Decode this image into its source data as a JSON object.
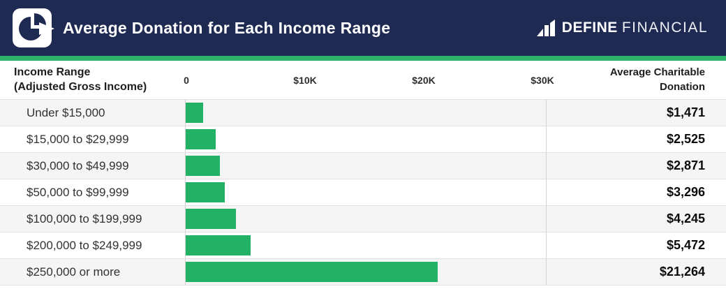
{
  "header": {
    "title": "Average Donation for Each Income Range",
    "logo_text_bold": "DEFINE",
    "logo_text_light": "FINANCIAL"
  },
  "table": {
    "income_header_line1": "Income Range",
    "income_header_line2": "(Adjusted Gross Income)",
    "value_header_line1": "Average Charitable",
    "value_header_line2": "Donation",
    "axis_ticks": [
      {
        "label": "0",
        "value": 0
      },
      {
        "label": "$10K",
        "value": 10000
      },
      {
        "label": "$20K",
        "value": 20000
      },
      {
        "label": "$30K",
        "value": 30000
      }
    ],
    "axis_max": 30000,
    "rows": [
      {
        "label": "Under $15,000",
        "value": 1471,
        "value_label": "$1,471"
      },
      {
        "label": "$15,000 to $29,999",
        "value": 2525,
        "value_label": "$2,525"
      },
      {
        "label": "$30,000 to $49,999",
        "value": 2871,
        "value_label": "$2,871"
      },
      {
        "label": "$50,000 to $99,999",
        "value": 3296,
        "value_label": "$3,296"
      },
      {
        "label": "$100,000 to $199,999",
        "value": 4245,
        "value_label": "$4,245"
      },
      {
        "label": "$200,000 to $249,999",
        "value": 5472,
        "value_label": "$5,472"
      },
      {
        "label": "$250,000 or more",
        "value": 21264,
        "value_label": "$21,264"
      }
    ]
  },
  "chart_data": {
    "type": "bar",
    "orientation": "horizontal",
    "title": "Average Donation for Each Income Range",
    "categories": [
      "Under $15,000",
      "$15,000 to $29,999",
      "$30,000 to $49,999",
      "$50,000 to $99,999",
      "$100,000 to $199,999",
      "$200,000 to $249,999",
      "$250,000 or more"
    ],
    "values": [
      1471,
      2525,
      2871,
      3296,
      4245,
      5472,
      21264
    ],
    "value_labels": [
      "$1,471",
      "$2,525",
      "$2,871",
      "$3,296",
      "$4,245",
      "$5,472",
      "$21,264"
    ],
    "xlabel": "Average Charitable Donation",
    "ylabel": "Income Range (Adjusted Gross Income)",
    "x_tick_labels": [
      "0",
      "$10K",
      "$20K",
      "$30K"
    ],
    "xlim": [
      0,
      30000
    ],
    "grid": false,
    "legend": "none",
    "bar_color": "#22b165"
  },
  "colors": {
    "header_bg": "#1f2a52",
    "accent_green": "#2fb26c",
    "bar_green": "#22b165",
    "row_alt_bg": "#f5f5f5",
    "border": "#e0e0e0"
  }
}
